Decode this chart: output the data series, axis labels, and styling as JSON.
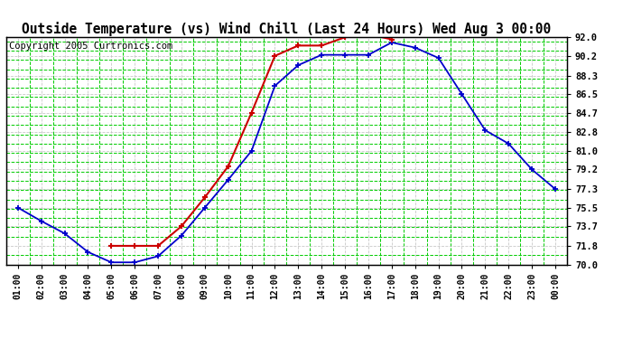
{
  "title": "Outside Temperature (vs) Wind Chill (Last 24 Hours) Wed Aug 3 00:00",
  "copyright": "Copyright 2005 Curtronics.com",
  "x_labels": [
    "01:00",
    "02:00",
    "03:00",
    "04:00",
    "05:00",
    "06:00",
    "07:00",
    "08:00",
    "09:00",
    "10:00",
    "11:00",
    "12:00",
    "13:00",
    "14:00",
    "15:00",
    "16:00",
    "17:00",
    "18:00",
    "19:00",
    "20:00",
    "21:00",
    "22:00",
    "23:00",
    "00:00"
  ],
  "blue_data": [
    75.5,
    74.2,
    73.0,
    71.2,
    70.2,
    70.2,
    70.8,
    72.8,
    75.5,
    78.2,
    81.0,
    87.3,
    89.3,
    90.3,
    90.3,
    90.3,
    91.5,
    91.0,
    90.0,
    86.5,
    83.0,
    81.7,
    79.2,
    77.3
  ],
  "red_data": [
    null,
    null,
    null,
    null,
    71.8,
    71.8,
    71.8,
    73.7,
    76.5,
    79.5,
    84.7,
    90.2,
    91.2,
    91.2,
    92.0,
    92.3,
    91.8,
    null,
    null,
    null,
    null,
    null,
    null,
    null
  ],
  "ylim": [
    70.0,
    92.0
  ],
  "yticks": [
    70.0,
    71.8,
    73.7,
    75.5,
    77.3,
    79.2,
    81.0,
    82.8,
    84.7,
    86.5,
    88.3,
    90.2,
    92.0
  ],
  "blue_color": "#0000cc",
  "red_color": "#cc0000",
  "bg_color": "#ffffff",
  "grid_color_green": "#00cc00",
  "grid_color_grey": "#bbbbbb",
  "title_fontsize": 10.5,
  "copyright_fontsize": 7.5
}
